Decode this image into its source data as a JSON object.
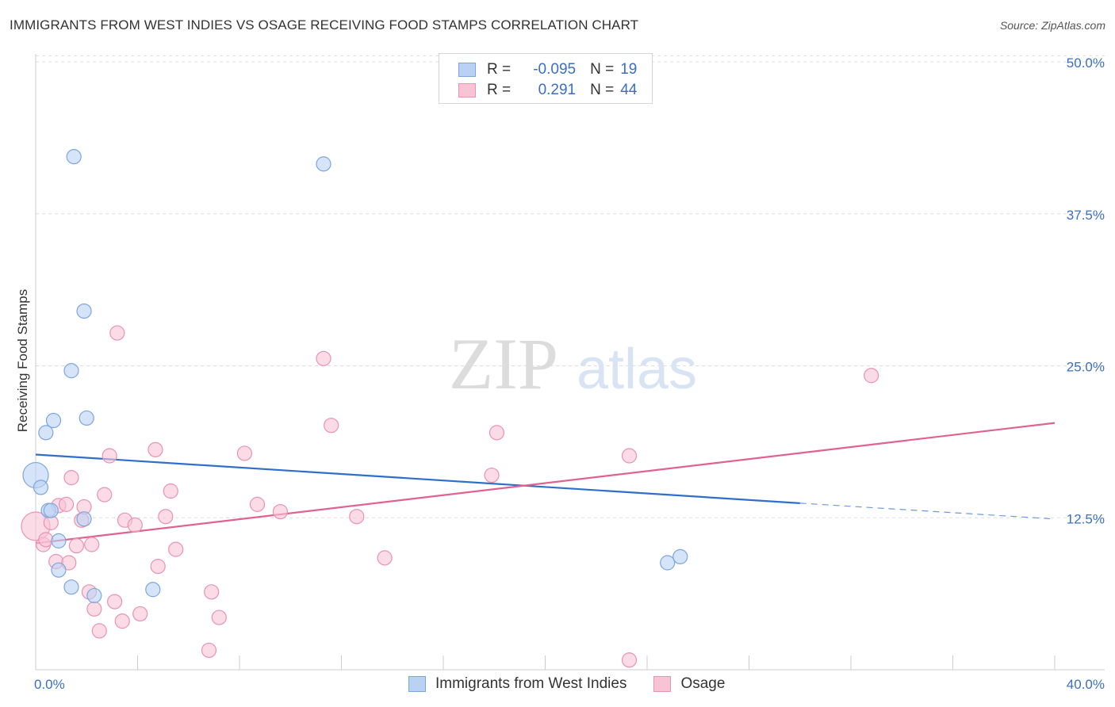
{
  "header": {
    "title": "IMMIGRANTS FROM WEST INDIES VS OSAGE RECEIVING FOOD STAMPS CORRELATION CHART",
    "source": "Source: ZipAtlas.com"
  },
  "watermark": {
    "zip": "ZIP",
    "atlas": "atlas"
  },
  "legend": {
    "rows": [
      {
        "r_label": "R = ",
        "r_value": "-0.095",
        "n_label": "N = ",
        "n_value": "19"
      },
      {
        "r_label": "R = ",
        "r_value": "0.291",
        "n_label": "N = ",
        "n_value": "44"
      }
    ]
  },
  "colors": {
    "blue_fill": "#b9d2f3",
    "blue_stroke": "#7da6de",
    "blue_line": "#2f6fcb",
    "pink_fill": "#f8c3d4",
    "pink_stroke": "#ea93b0",
    "pink_line": "#e0628e",
    "axis_text": "#3a6fc4"
  },
  "chart_data": {
    "type": "scatter",
    "title": "IMMIGRANTS FROM WEST INDIES VS OSAGE RECEIVING FOOD STAMPS CORRELATION CHART",
    "xlabel": "",
    "ylabel": "Receiving Food Stamps",
    "xlim": [
      0,
      40
    ],
    "ylim": [
      0,
      50
    ],
    "x_tick_labels": [
      "0.0%",
      "40.0%"
    ],
    "y_ticks": [
      12.5,
      25.0,
      37.5,
      50.0
    ],
    "y_tick_labels": [
      "12.5%",
      "25.0%",
      "37.5%",
      "50.0%"
    ],
    "grid": true,
    "series": [
      {
        "name": "Immigrants from West Indies",
        "color": "blue",
        "r": -0.095,
        "n": 19,
        "points": [
          [
            0.0,
            16.0,
            16
          ],
          [
            0.2,
            15.0,
            9
          ],
          [
            1.5,
            42.2,
            9
          ],
          [
            11.3,
            41.6,
            9
          ],
          [
            1.9,
            29.5,
            9
          ],
          [
            1.4,
            24.6,
            9
          ],
          [
            2.0,
            20.7,
            9
          ],
          [
            0.7,
            20.5,
            9
          ],
          [
            0.4,
            19.5,
            9
          ],
          [
            0.5,
            13.1,
            9
          ],
          [
            0.6,
            13.1,
            9
          ],
          [
            1.9,
            12.4,
            9
          ],
          [
            0.9,
            10.6,
            9
          ],
          [
            0.9,
            8.2,
            9
          ],
          [
            1.4,
            6.8,
            9
          ],
          [
            2.3,
            6.1,
            9
          ],
          [
            4.6,
            6.6,
            9
          ],
          [
            24.8,
            8.8,
            9
          ],
          [
            25.3,
            9.3,
            9
          ]
        ],
        "trend": {
          "x0": 0,
          "y0": 17.7,
          "x1": 30,
          "y1": 13.7,
          "dash_x1": 40,
          "dash_y1": 12.4
        }
      },
      {
        "name": "Osage",
        "color": "pink",
        "r": 0.291,
        "n": 44,
        "points": [
          [
            0.0,
            11.8,
            18
          ],
          [
            0.3,
            10.3,
            9
          ],
          [
            0.4,
            10.7,
            9
          ],
          [
            0.6,
            12.1,
            9
          ],
          [
            0.8,
            8.9,
            9
          ],
          [
            0.9,
            13.5,
            9
          ],
          [
            1.2,
            13.6,
            9
          ],
          [
            1.3,
            8.8,
            9
          ],
          [
            1.4,
            15.8,
            9
          ],
          [
            1.6,
            10.2,
            9
          ],
          [
            1.8,
            12.3,
            9
          ],
          [
            1.9,
            13.4,
            9
          ],
          [
            2.1,
            6.4,
            9
          ],
          [
            2.2,
            10.3,
            9
          ],
          [
            2.3,
            5.0,
            9
          ],
          [
            2.5,
            3.2,
            9
          ],
          [
            2.7,
            14.4,
            9
          ],
          [
            2.9,
            17.6,
            9
          ],
          [
            3.1,
            5.6,
            9
          ],
          [
            3.2,
            27.7,
            9
          ],
          [
            3.4,
            4.0,
            9
          ],
          [
            3.5,
            12.3,
            9
          ],
          [
            3.9,
            11.9,
            9
          ],
          [
            4.1,
            4.6,
            9
          ],
          [
            4.7,
            18.1,
            9
          ],
          [
            4.8,
            8.5,
            9
          ],
          [
            5.1,
            12.6,
            9
          ],
          [
            5.3,
            14.7,
            9
          ],
          [
            5.5,
            9.9,
            9
          ],
          [
            6.8,
            1.6,
            9
          ],
          [
            6.9,
            6.4,
            9
          ],
          [
            7.2,
            4.3,
            9
          ],
          [
            8.2,
            17.8,
            9
          ],
          [
            8.7,
            13.6,
            9
          ],
          [
            9.6,
            13.0,
            9
          ],
          [
            11.3,
            25.6,
            9
          ],
          [
            11.6,
            20.1,
            9
          ],
          [
            12.6,
            12.6,
            9
          ],
          [
            13.7,
            9.2,
            9
          ],
          [
            17.9,
            16.0,
            9
          ],
          [
            18.1,
            19.5,
            9
          ],
          [
            23.3,
            17.6,
            9
          ],
          [
            23.3,
            0.8,
            9
          ],
          [
            32.8,
            24.2,
            9
          ]
        ],
        "trend": {
          "x0": 0,
          "y0": 10.4,
          "x1": 40,
          "y1": 20.3
        }
      }
    ]
  },
  "bottom_legend": {
    "items": [
      {
        "label": "Immigrants from West Indies"
      },
      {
        "label": "Osage"
      }
    ]
  }
}
